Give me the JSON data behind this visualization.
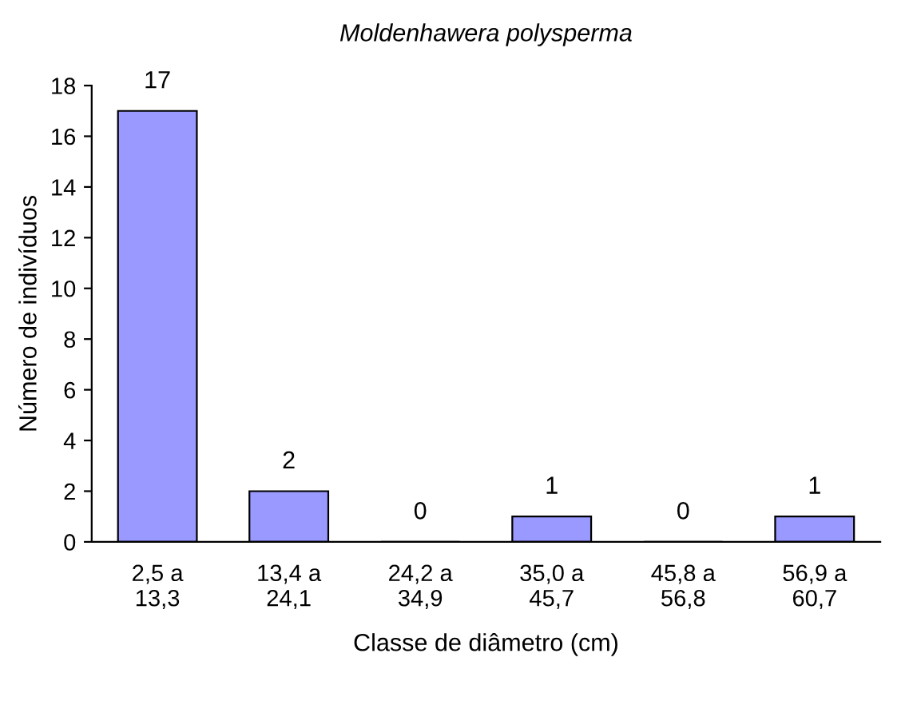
{
  "chart_data": {
    "type": "bar",
    "title": "Moldenhawera polysperma",
    "xlabel": "Classe de diâmetro (cm)",
    "ylabel": "Número de indivíduos",
    "categories": [
      "2,5 a\n13,3",
      "13,4 a\n24,1",
      "24,2 a\n34,9",
      "35,0 a\n45,7",
      "45,8 a\n56,8",
      "56,9 a\n60,7"
    ],
    "values": [
      17,
      2,
      0,
      1,
      0,
      1
    ],
    "color": "#9999ff",
    "ylim": [
      0,
      18
    ],
    "yticks": [
      0,
      2,
      4,
      6,
      8,
      10,
      12,
      14,
      16,
      18
    ],
    "data_labels": true,
    "grid": false,
    "legend": false
  }
}
